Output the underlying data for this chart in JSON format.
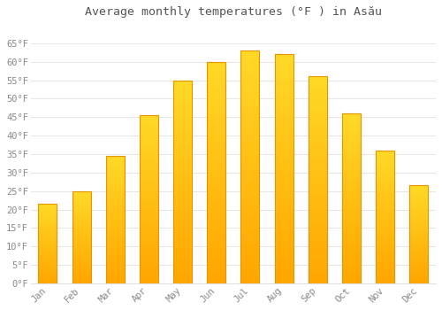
{
  "title": "Average monthly temperatures (°F ) in Asău",
  "months": [
    "Jan",
    "Feb",
    "Mar",
    "Apr",
    "May",
    "Jun",
    "Jul",
    "Aug",
    "Sep",
    "Oct",
    "Nov",
    "Dec"
  ],
  "values": [
    21.5,
    25.0,
    34.5,
    45.5,
    55.0,
    60.0,
    63.0,
    62.0,
    56.0,
    46.0,
    36.0,
    26.5
  ],
  "bar_color_bottom": "#FFA500",
  "bar_color_top": "#FFD700",
  "bar_edge_color": "#E89400",
  "background_color": "#FFFFFF",
  "grid_color": "#E0E0E0",
  "text_color": "#888888",
  "title_color": "#555555",
  "ylim": [
    0,
    70
  ],
  "yticks": [
    0,
    5,
    10,
    15,
    20,
    25,
    30,
    35,
    40,
    45,
    50,
    55,
    60,
    65
  ],
  "title_fontsize": 9.5,
  "tick_fontsize": 7.5,
  "font_family": "monospace",
  "bar_width": 0.55
}
